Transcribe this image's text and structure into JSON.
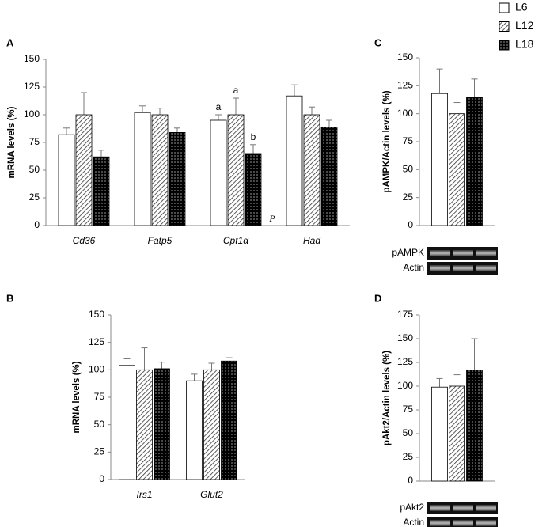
{
  "chart_data": [
    {
      "type": "bar",
      "label": "A",
      "ylabel": "mRNA levels (%)",
      "categories": [
        "Cd36",
        "Fatp5",
        "Cpt1α",
        "Had"
      ],
      "series": [
        {
          "name": "L6",
          "fill": "white",
          "values": [
            82,
            102,
            95,
            117
          ],
          "errors": [
            6,
            6,
            5,
            10
          ]
        },
        {
          "name": "L12",
          "fill": "hatch",
          "values": [
            100,
            100,
            100,
            100
          ],
          "errors": [
            20,
            6,
            15,
            7
          ]
        },
        {
          "name": "L18",
          "fill": "dots",
          "values": [
            62,
            84,
            65,
            89
          ],
          "errors": [
            6,
            4,
            8,
            6
          ]
        }
      ],
      "ylim": [
        0,
        150
      ],
      "yticks": [
        0,
        25,
        50,
        75,
        100,
        125,
        150
      ],
      "annotations": [
        {
          "text": "a",
          "category": 2,
          "series": 0
        },
        {
          "text": "a",
          "category": 2,
          "series": 1
        },
        {
          "text": "b",
          "category": 2,
          "series": 2
        },
        {
          "text": "P",
          "category": 2
        }
      ]
    },
    {
      "type": "bar",
      "label": "B",
      "ylabel": "mRNA levels (%)",
      "categories": [
        "Irs1",
        "Glut2"
      ],
      "series": [
        {
          "values": [
            104,
            90
          ],
          "errors": [
            6,
            6
          ]
        },
        {
          "values": [
            100,
            100
          ],
          "errors": [
            20,
            6
          ]
        },
        {
          "values": [
            101,
            108
          ],
          "errors": [
            6,
            3
          ]
        }
      ],
      "ylim": [
        0,
        150
      ],
      "yticks": [
        0,
        25,
        50,
        75,
        100,
        125,
        150
      ]
    },
    {
      "type": "bar",
      "label": "C",
      "ylabel": "pAMPK/Actin levels (%)",
      "categories": [
        null
      ],
      "series": [
        {
          "values": [
            118
          ],
          "errors": [
            22
          ]
        },
        {
          "values": [
            100
          ],
          "errors": [
            10
          ]
        },
        {
          "values": [
            115
          ],
          "errors": [
            16
          ]
        }
      ],
      "ylim": [
        0,
        150
      ],
      "yticks": [
        0,
        25,
        50,
        75,
        100,
        125,
        150
      ],
      "blots": [
        "pAMPK",
        "Actin"
      ]
    },
    {
      "type": "bar",
      "label": "D",
      "ylabel": "pAkt2/Actin levels (%)",
      "categories": [
        null
      ],
      "series": [
        {
          "values": [
            99
          ],
          "errors": [
            9
          ]
        },
        {
          "values": [
            100
          ],
          "errors": [
            12
          ]
        },
        {
          "values": [
            117
          ],
          "errors": [
            33
          ]
        }
      ],
      "ylim": [
        0,
        175
      ],
      "yticks": [
        0,
        25,
        50,
        75,
        100,
        125,
        150,
        175
      ],
      "blots": [
        "pAkt2",
        "Actin"
      ]
    }
  ]
}
